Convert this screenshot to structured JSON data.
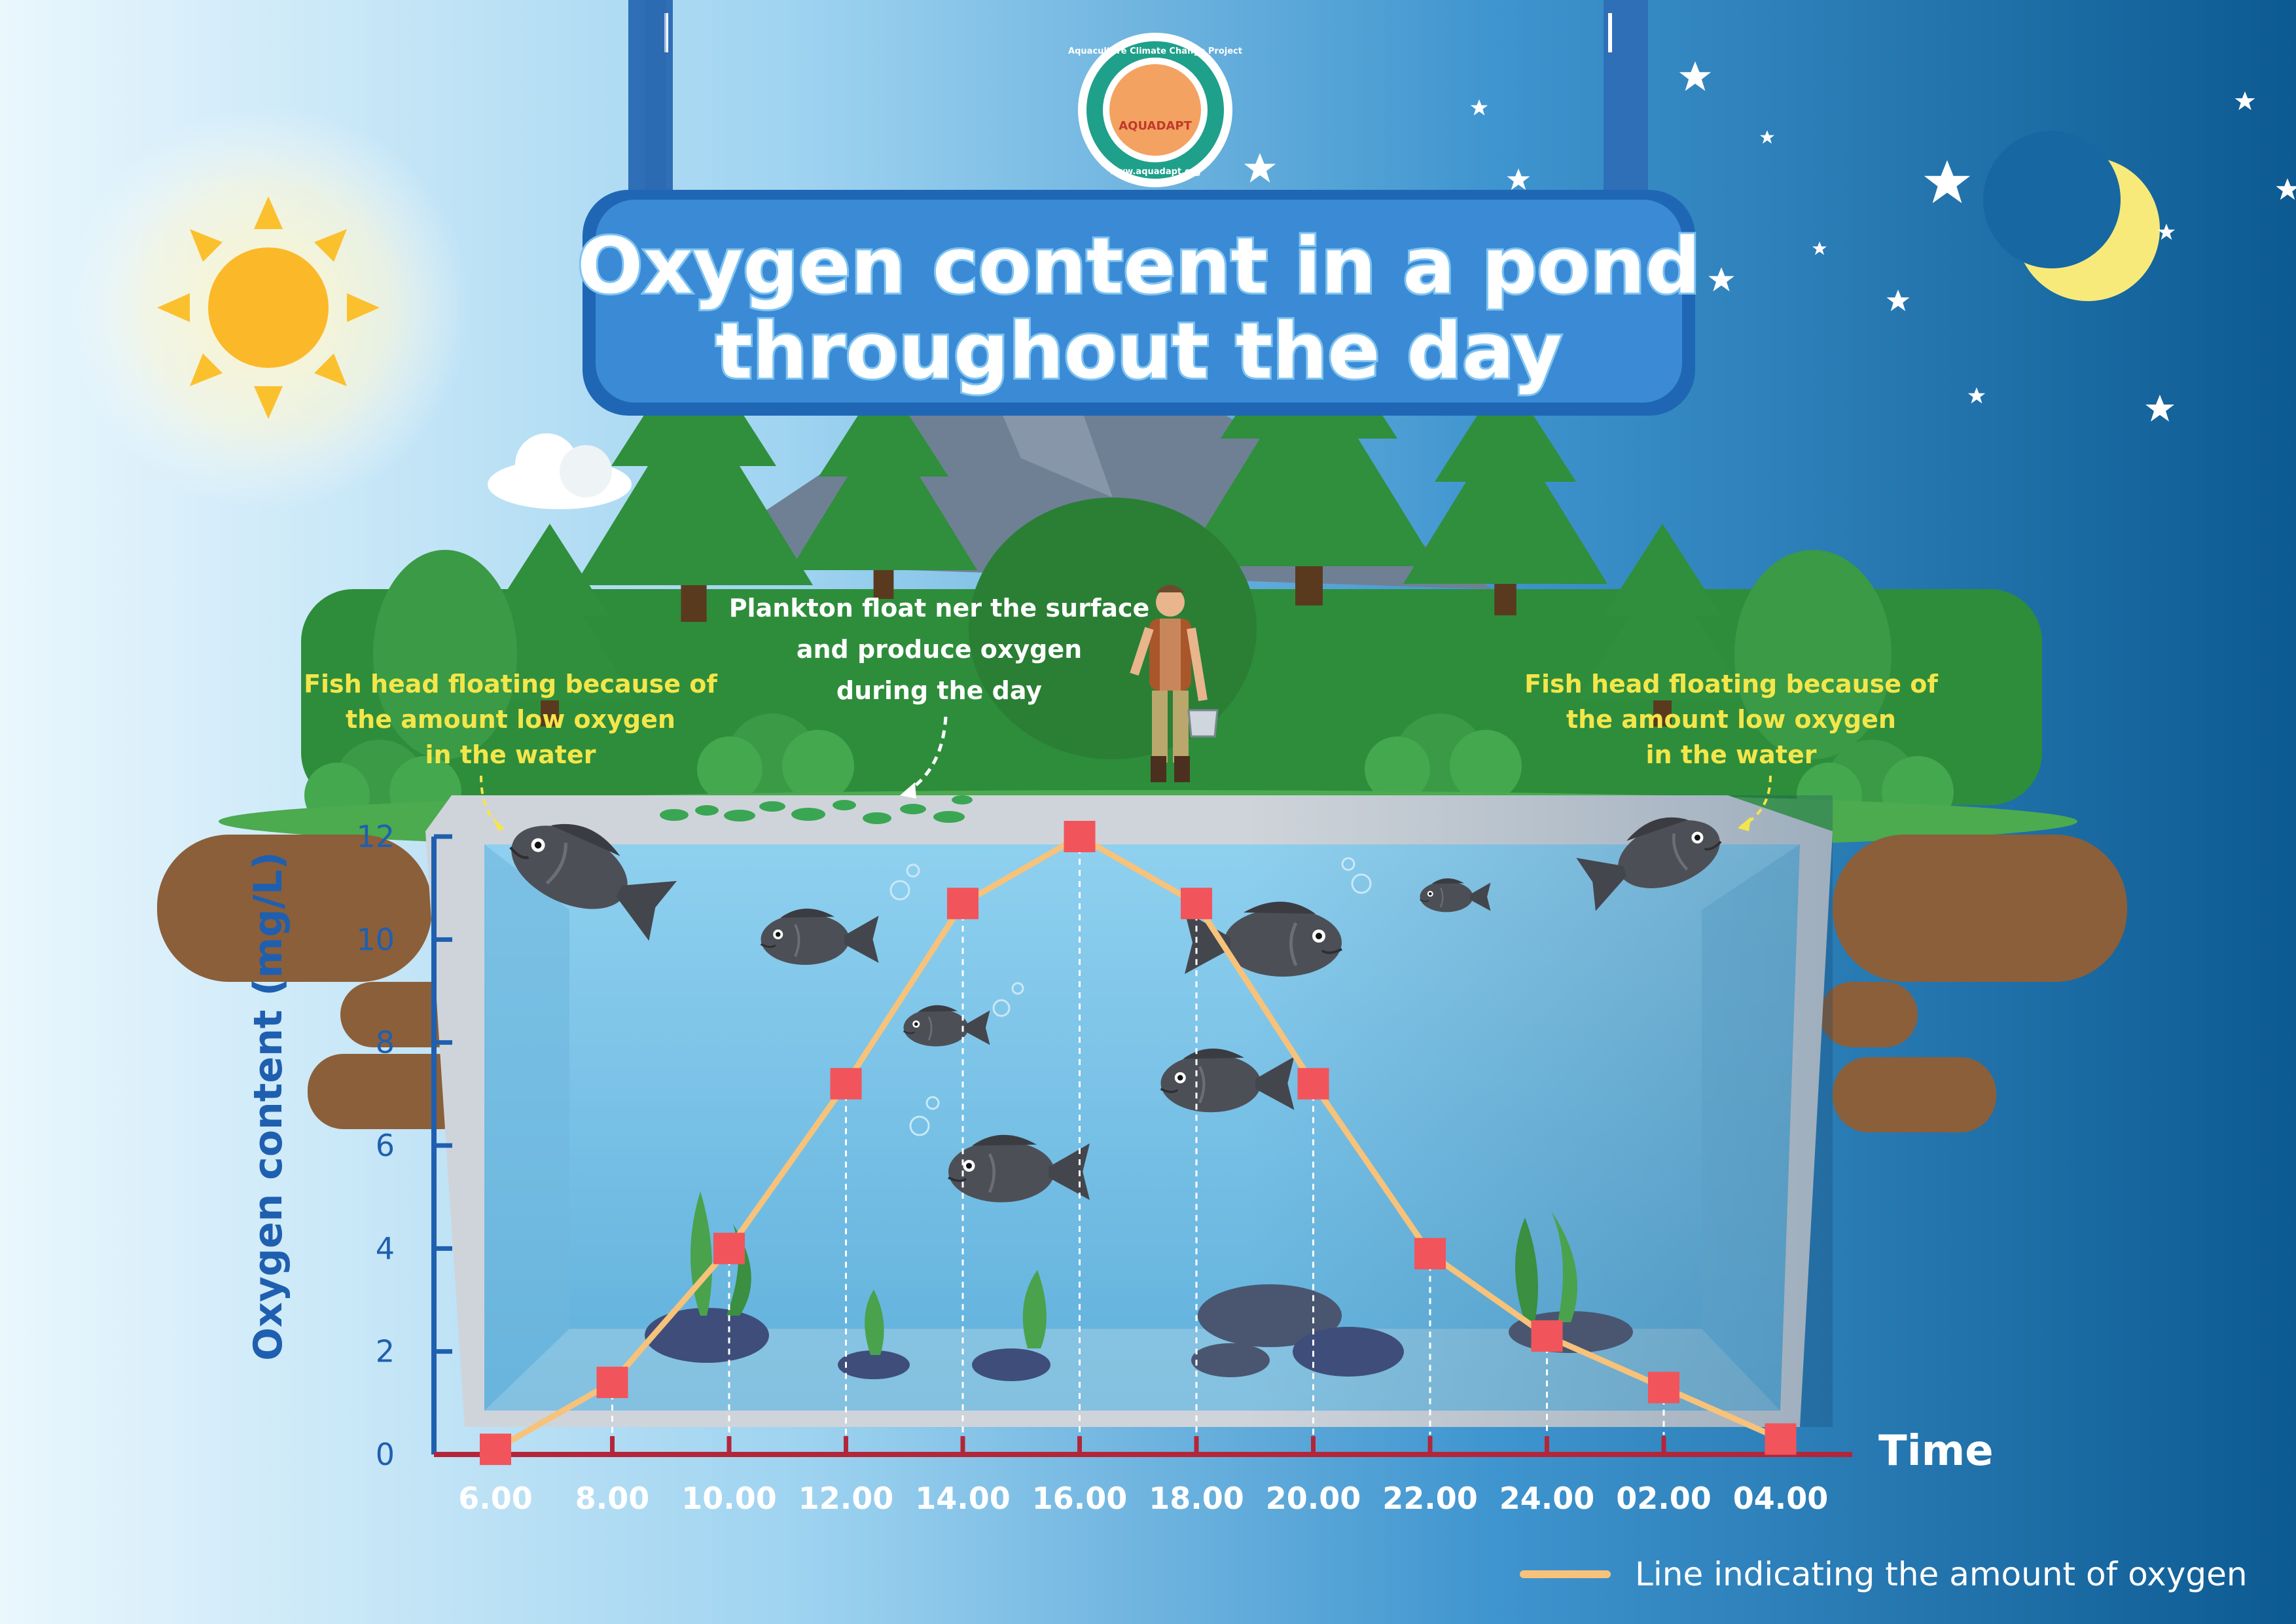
{
  "title": {
    "line1": "Oxygen content in a pond",
    "line2": "throughout the day"
  },
  "logo": {
    "ring_text": "Aquaculture Climate Change Project",
    "name": "AQUADAPT",
    "url": "www.aquadapt.org"
  },
  "annotations": {
    "left_fish": [
      "Fish head floating because of",
      "the amount low oxygen",
      "in the water"
    ],
    "right_fish": [
      "Fish head floating because of",
      "the amount low oxygen",
      "in the water"
    ],
    "plankton": [
      "Plankton float ner the surface",
      "and produce oxygen",
      "during the day"
    ]
  },
  "legend": {
    "label": "Line indicating the amount of oxygen",
    "color": "#f7c27a"
  },
  "colors": {
    "sky_day": "#dff1fb",
    "sky_night": "#0e5b93",
    "axis_y": "#1f5fb0",
    "axis_x": "#b3263a",
    "marker": "#f2545b",
    "line": "#f7c27a",
    "water": "#7cc3e6"
  },
  "icons": {
    "sun": "sun-icon",
    "moon": "crescent-moon-icon",
    "star": "star-icon",
    "cloud": "cloud-icon",
    "fish": "tilapia-fish-icon",
    "farmer": "farmer-figure-icon",
    "plankton": "plankton-patches-icon",
    "tree": "pine-tree-icon"
  },
  "chart_data": {
    "type": "line",
    "title": "Oxygen content in a pond throughout the day",
    "xlabel": "Time",
    "ylabel": "Oxygen content (mg/L)",
    "categories": [
      "6.00",
      "8.00",
      "10.00",
      "12.00",
      "14.00",
      "16.00",
      "18.00",
      "20.00",
      "22.00",
      "24.00",
      "02.00",
      "04.00"
    ],
    "y_ticks": [
      0,
      2,
      4,
      6,
      8,
      10,
      12
    ],
    "ylim": [
      0,
      12
    ],
    "series": [
      {
        "name": "Line indicating the amount of oxygen",
        "values": [
          0.1,
          1.4,
          4.0,
          7.2,
          10.7,
          12.0,
          10.7,
          7.2,
          3.9,
          2.3,
          1.3,
          0.3
        ]
      }
    ],
    "grid": false,
    "legend_position": "bottom-right",
    "markers": "square"
  }
}
